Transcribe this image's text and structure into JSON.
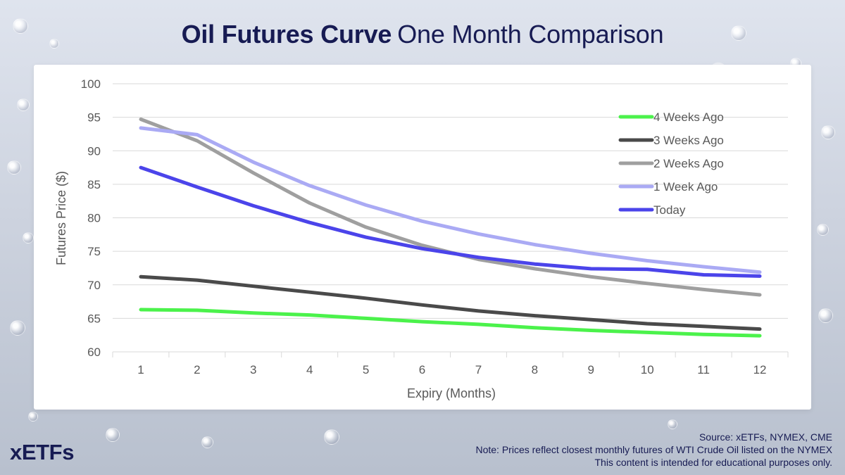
{
  "header": {
    "title_bold": "Oil Futures Curve",
    "title_regular": "One Month Comparison"
  },
  "footer": {
    "brand": "xETFs",
    "source": "Source: xETFs, NYMEX, CME",
    "note": "Note: Prices reflect closest monthly futures of WTI Crude Oil listed on the NYMEX",
    "disclaimer": "This content is intended for educational purposes only."
  },
  "chart_data": {
    "type": "line",
    "title": "",
    "xlabel": "Expiry (Months)",
    "ylabel": "Futures Price ($)",
    "x": [
      1,
      2,
      3,
      4,
      5,
      6,
      7,
      8,
      9,
      10,
      11,
      12
    ],
    "xlim": [
      0.5,
      12.5
    ],
    "ylim": [
      60,
      100
    ],
    "yticks": [
      60,
      65,
      70,
      75,
      80,
      85,
      90,
      95,
      100
    ],
    "grid": true,
    "legend": "top-right",
    "series": [
      {
        "name": "4 Weeks Ago",
        "color": "#4bf24b",
        "values": [
          66.3,
          66.2,
          65.8,
          65.5,
          65.0,
          64.5,
          64.1,
          63.6,
          63.2,
          62.9,
          62.6,
          62.4
        ]
      },
      {
        "name": "3 Weeks Ago",
        "color": "#4a4a4a",
        "values": [
          71.2,
          70.7,
          69.8,
          68.9,
          68.0,
          67.0,
          66.1,
          65.4,
          64.8,
          64.2,
          63.8,
          63.4
        ]
      },
      {
        "name": "2 Weeks Ago",
        "color": "#9f9f9f",
        "values": [
          94.7,
          91.5,
          86.7,
          82.2,
          78.6,
          75.9,
          73.8,
          72.4,
          71.2,
          70.2,
          69.3,
          68.5
        ]
      },
      {
        "name": "1 Week Ago",
        "color": "#aaaaf4",
        "values": [
          93.4,
          92.4,
          88.3,
          84.8,
          81.9,
          79.5,
          77.6,
          76.0,
          74.7,
          73.6,
          72.7,
          71.9
        ]
      },
      {
        "name": "Today",
        "color": "#4b44ea",
        "values": [
          87.5,
          84.6,
          81.8,
          79.3,
          77.1,
          75.4,
          74.1,
          73.1,
          72.4,
          72.3,
          71.5,
          71.3
        ]
      }
    ]
  }
}
